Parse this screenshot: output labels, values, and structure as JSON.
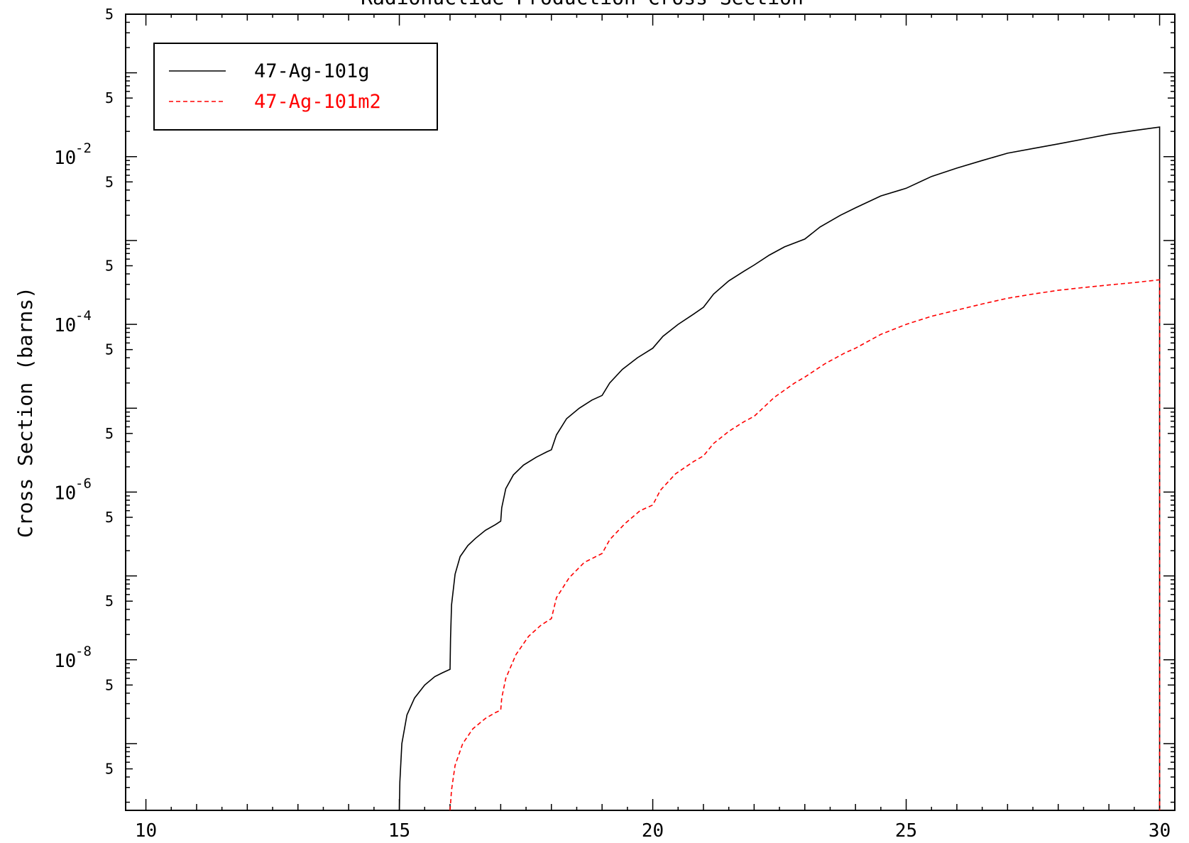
{
  "chart_data": {
    "type": "line",
    "title": "Radionuclide Production Cross Section",
    "xlabel": "",
    "ylabel": "Cross Section (barns)",
    "x_scale": "linear",
    "y_scale": "log",
    "xlim": [
      9.6,
      30.3
    ],
    "ylim": [
      1.6e-10,
      0.5
    ],
    "x_ticks": [
      10,
      15,
      20,
      25,
      30
    ],
    "x_tick_labels": [
      "10",
      "15",
      "20",
      "25",
      "30"
    ],
    "y_ticks": [
      {
        "value": 0.01,
        "base": "10",
        "exp": "-2"
      },
      {
        "value": 0.0001,
        "base": "10",
        "exp": "-4"
      },
      {
        "value": 1e-06,
        "base": "10",
        "exp": "-6"
      },
      {
        "value": 1e-08,
        "base": "10",
        "exp": "-8"
      }
    ],
    "y_five_label": "5",
    "grid": false,
    "legend_position": "top-left",
    "series": [
      {
        "name": "47-Ag-101g",
        "color": "#000000",
        "dash": "solid",
        "x": [
          15.0,
          15.01,
          15.05,
          15.15,
          15.3,
          15.5,
          15.7,
          15.85,
          16.0,
          16.01,
          16.03,
          16.1,
          16.2,
          16.35,
          16.5,
          16.7,
          16.9,
          17.0,
          17.02,
          17.1,
          17.25,
          17.45,
          17.7,
          17.9,
          18.0,
          18.1,
          18.3,
          18.55,
          18.8,
          19.0,
          19.15,
          19.4,
          19.7,
          20.0,
          20.2,
          20.5,
          20.8,
          21.0,
          21.2,
          21.5,
          21.8,
          22.0,
          22.3,
          22.6,
          23.0,
          23.3,
          23.7,
          24.0,
          24.5,
          25.0,
          25.5,
          26.0,
          26.5,
          27.0,
          27.5,
          28.0,
          28.5,
          29.0,
          29.5,
          30.0,
          30.0
        ],
        "y": [
          1.6e-10,
          3.5e-10,
          1e-09,
          2.2e-09,
          3.5e-09,
          5e-09,
          6.3e-09,
          7e-09,
          7.7e-09,
          1.8e-08,
          4.5e-08,
          1.05e-07,
          1.7e-07,
          2.3e-07,
          2.8e-07,
          3.5e-07,
          4.1e-07,
          4.5e-07,
          6.5e-07,
          1.1e-06,
          1.6e-06,
          2.1e-06,
          2.6e-06,
          3e-06,
          3.2e-06,
          4.8e-06,
          7.5e-06,
          1e-05,
          1.25e-05,
          1.42e-05,
          2e-05,
          2.9e-05,
          4e-05,
          5.2e-05,
          7.2e-05,
          0.0001,
          0.000132,
          0.00016,
          0.00023,
          0.00033,
          0.00043,
          0.00051,
          0.00067,
          0.00084,
          0.00104,
          0.00145,
          0.002,
          0.00245,
          0.0034,
          0.0042,
          0.0058,
          0.0073,
          0.009,
          0.011,
          0.0125,
          0.0142,
          0.0162,
          0.0185,
          0.0205,
          0.0225,
          1.6e-10
        ]
      },
      {
        "name": "47-Ag-101m2",
        "color": "#ff0000",
        "dash": "dashed",
        "x": [
          16.0,
          16.03,
          16.1,
          16.25,
          16.45,
          16.7,
          16.9,
          17.0,
          17.02,
          17.1,
          17.3,
          17.55,
          17.8,
          18.0,
          18.1,
          18.35,
          18.65,
          19.0,
          19.15,
          19.45,
          19.75,
          20.0,
          20.15,
          20.45,
          20.8,
          21.0,
          21.2,
          21.5,
          21.8,
          22.0,
          22.4,
          22.8,
          23.0,
          23.4,
          23.8,
          24.0,
          24.5,
          25.0,
          25.5,
          26.0,
          26.5,
          27.0,
          27.5,
          28.0,
          28.5,
          29.0,
          29.5,
          30.0,
          30.0
        ],
        "y": [
          1.6e-10,
          2.8e-10,
          5.5e-10,
          1e-09,
          1.5e-09,
          2e-09,
          2.35e-09,
          2.5e-09,
          3.5e-09,
          6e-09,
          1.15e-08,
          1.9e-08,
          2.6e-08,
          3.1e-08,
          5.5e-08,
          9.5e-08,
          1.45e-07,
          1.85e-07,
          2.7e-07,
          4.2e-07,
          6e-07,
          7e-07,
          1.05e-06,
          1.65e-06,
          2.3e-06,
          2.7e-06,
          3.8e-06,
          5.3e-06,
          6.9e-06,
          8e-06,
          1.35e-05,
          2e-05,
          2.35e-05,
          3.4e-05,
          4.6e-05,
          5.2e-05,
          7.6e-05,
          0.0001,
          0.000125,
          0.000148,
          0.000175,
          0.000205,
          0.00023,
          0.000255,
          0.000275,
          0.000295,
          0.000315,
          0.00034,
          1.6e-10
        ]
      }
    ]
  }
}
